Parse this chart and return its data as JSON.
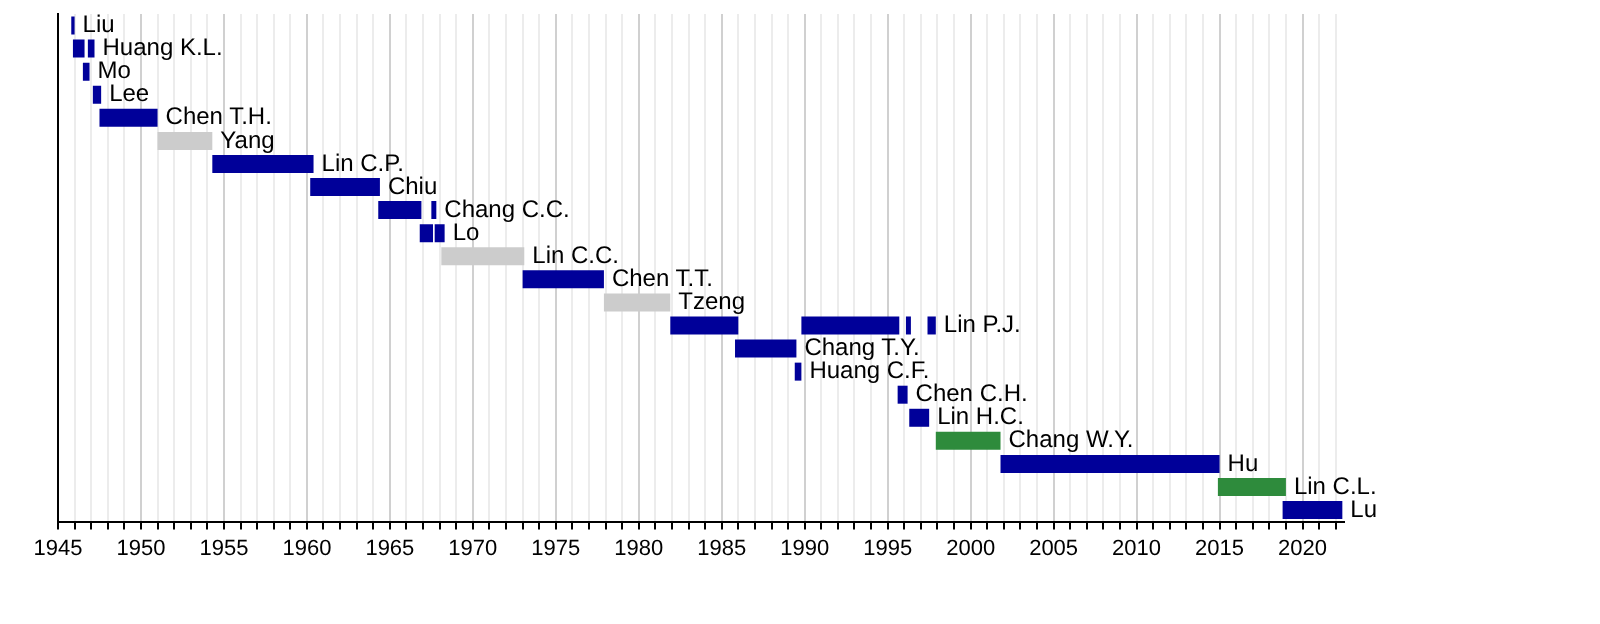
{
  "chart_data": {
    "type": "bar",
    "orientation": "horizontal",
    "categories": [
      "Liu",
      "Huang K.L.",
      "Mo",
      "Lee",
      "Chen T.H.",
      "Yang",
      "Lin C.P.",
      "Chiu",
      "Chang C.C.",
      "Lo",
      "Lin C.C.",
      "Chen T.T.",
      "Tzeng",
      "Lin P.J.",
      "Chang T.Y.",
      "Huang C.F.",
      "Chen C.H.",
      "Lin H.C.",
      "Chang W.Y.",
      "Hu",
      "Lin C.L.",
      "Lu"
    ],
    "series": [
      {
        "base": [
          1945.8,
          1945.9,
          1946.5,
          1947.1,
          1947.5,
          1951.0,
          1954.3,
          1960.2,
          1964.3,
          1966.8,
          1968.1,
          1973.0,
          1977.9,
          1981.9,
          1985.8,
          1989.4,
          1995.6,
          1996.3,
          1997.9,
          2001.8,
          2014.9,
          2018.8
        ],
        "values": [
          0.2,
          0.7,
          0.4,
          0.5,
          3.5,
          3.3,
          6.1,
          4.2,
          2.6,
          0.8,
          5.0,
          4.9,
          4.0,
          4.1,
          3.7,
          0.4,
          0.6,
          1.2,
          3.9,
          13.2,
          4.1,
          3.6
        ],
        "colors": [
          "#000099",
          "#000099",
          "#000099",
          "#000099",
          "#000099",
          "#cccccc",
          "#000099",
          "#000099",
          "#000099",
          "#000099",
          "#cccccc",
          "#000099",
          "#cccccc",
          "#000099",
          "#000099",
          "#000099",
          "#000099",
          "#000099",
          "#2e8b3c",
          "#000099",
          "#2e8b3c",
          "#000099"
        ]
      },
      {
        "base": [
          null,
          1946.8,
          null,
          null,
          null,
          null,
          null,
          null,
          1967.5,
          1967.7,
          null,
          null,
          null,
          1989.8,
          null,
          null,
          null,
          null,
          null,
          null,
          null,
          null
        ],
        "values": [
          null,
          0.4,
          null,
          null,
          null,
          null,
          null,
          null,
          0.3,
          0.6,
          null,
          null,
          null,
          5.9,
          null,
          null,
          null,
          null,
          null,
          null,
          null,
          null
        ],
        "colors": [
          null,
          "#000099",
          null,
          null,
          null,
          null,
          null,
          null,
          "#000099",
          "#000099",
          null,
          null,
          null,
          "#000099",
          null,
          null,
          null,
          null,
          null,
          null,
          null,
          null
        ]
      },
      {
        "base": [
          null,
          null,
          null,
          null,
          null,
          null,
          null,
          null,
          null,
          null,
          null,
          null,
          null,
          1996.1,
          null,
          null,
          null,
          null,
          null,
          null,
          null,
          null
        ],
        "values": [
          null,
          null,
          null,
          null,
          null,
          null,
          null,
          null,
          null,
          null,
          null,
          null,
          null,
          0.3,
          null,
          null,
          null,
          null,
          null,
          null,
          null,
          null
        ],
        "colors": [
          null,
          null,
          null,
          null,
          null,
          null,
          null,
          null,
          null,
          null,
          null,
          null,
          null,
          "#000099",
          null,
          null,
          null,
          null,
          null,
          null,
          null,
          null
        ]
      },
      {
        "base": [
          null,
          null,
          null,
          null,
          null,
          null,
          null,
          null,
          null,
          null,
          null,
          null,
          null,
          1997.4,
          null,
          null,
          null,
          null,
          null,
          null,
          null,
          null
        ],
        "values": [
          null,
          null,
          null,
          null,
          null,
          null,
          null,
          null,
          null,
          null,
          null,
          null,
          null,
          0.5,
          null,
          null,
          null,
          null,
          null,
          null,
          null,
          null
        ],
        "colors": [
          null,
          null,
          null,
          null,
          null,
          null,
          null,
          null,
          null,
          null,
          null,
          null,
          null,
          "#000099",
          null,
          null,
          null,
          null,
          null,
          null,
          null,
          null
        ]
      }
    ],
    "xlim": [
      1945,
      2022.5
    ],
    "xticks": [
      1945,
      {
        "value": 1946,
        "label": null
      },
      {
        "value": 1947,
        "label": null
      },
      {
        "value": 1948,
        "label": null
      },
      {
        "value": 1949,
        "label": null
      },
      1950,
      {
        "value": 1951,
        "label": null
      },
      {
        "value": 1952,
        "label": null
      },
      {
        "value": 1953,
        "label": null
      },
      {
        "value": 1954,
        "label": null
      },
      1955,
      {
        "value": 1956,
        "label": null
      },
      {
        "value": 1957,
        "label": null
      },
      {
        "value": 1958,
        "label": null
      },
      {
        "value": 1959,
        "label": null
      },
      1960,
      {
        "value": 1961,
        "label": null
      },
      {
        "value": 1962,
        "label": null
      },
      {
        "value": 1963,
        "label": null
      },
      {
        "value": 1964,
        "label": null
      },
      1965,
      {
        "value": 1966,
        "label": null
      },
      {
        "value": 1967,
        "label": null
      },
      {
        "value": 1968,
        "label": null
      },
      {
        "value": 1969,
        "label": null
      },
      1970,
      {
        "value": 1971,
        "label": null
      },
      {
        "value": 1972,
        "label": null
      },
      {
        "value": 1973,
        "label": null
      },
      {
        "value": 1974,
        "label": null
      },
      1975,
      {
        "value": 1976,
        "label": null
      },
      {
        "value": 1977,
        "label": null
      },
      {
        "value": 1978,
        "label": null
      },
      {
        "value": 1979,
        "label": null
      },
      1980,
      {
        "value": 1981,
        "label": null
      },
      {
        "value": 1982,
        "label": null
      },
      {
        "value": 1983,
        "label": null
      },
      {
        "value": 1984,
        "label": null
      },
      1985,
      {
        "value": 1986,
        "label": null
      },
      {
        "value": 1987,
        "label": null
      },
      {
        "value": 1988,
        "label": null
      },
      {
        "value": 1989,
        "label": null
      },
      1990,
      {
        "value": 1991,
        "label": null
      },
      {
        "value": 1992,
        "label": null
      },
      {
        "value": 1993,
        "label": null
      },
      {
        "value": 1994,
        "label": null
      },
      1995,
      {
        "value": 1996,
        "label": null
      },
      {
        "value": 1997,
        "label": null
      },
      {
        "value": 1998,
        "label": null
      },
      {
        "value": 1999,
        "label": null
      },
      2000,
      {
        "value": 2001,
        "label": null
      },
      {
        "value": 2002,
        "label": null
      },
      {
        "value": 2003,
        "label": null
      },
      {
        "value": 2004,
        "label": null
      },
      2005,
      {
        "value": 2006,
        "label": null
      },
      {
        "value": 2007,
        "label": null
      },
      {
        "value": 2008,
        "label": null
      },
      {
        "value": 2009,
        "label": null
      },
      2010,
      {
        "value": 2011,
        "label": null
      },
      {
        "value": 2012,
        "label": null
      },
      {
        "value": 2013,
        "label": null
      },
      {
        "value": 2014,
        "label": null
      },
      2015,
      {
        "value": 2016,
        "label": null
      },
      {
        "value": 2017,
        "label": null
      },
      {
        "value": 2018,
        "label": null
      },
      {
        "value": 2019,
        "label": null
      },
      2020,
      {
        "value": 2021,
        "label": null
      },
      {
        "value": 2022,
        "label": null
      }
    ],
    "grid": "x",
    "tick_labels": "x",
    "legend": false
  }
}
